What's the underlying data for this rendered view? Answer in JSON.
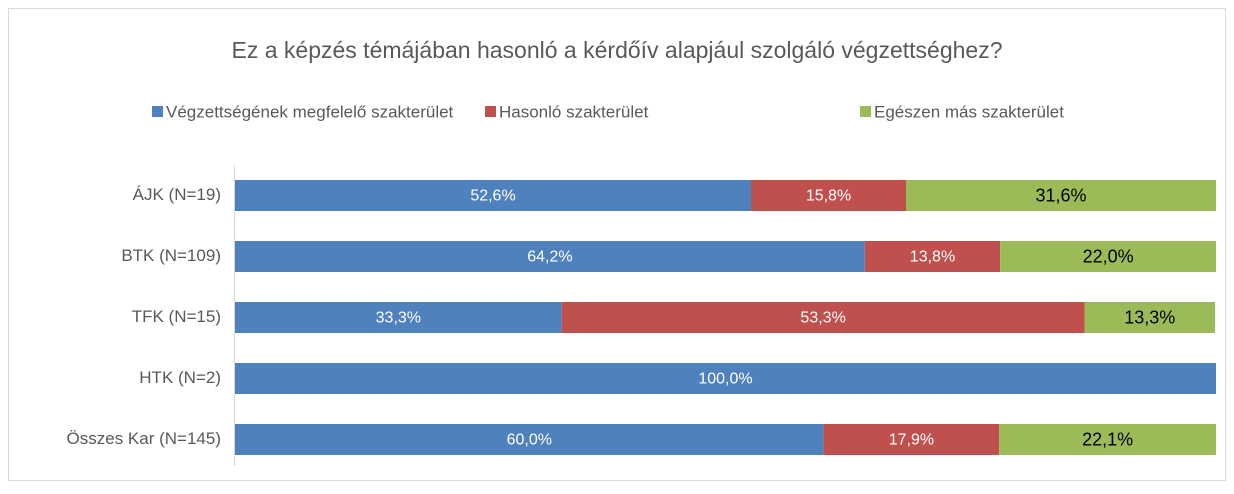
{
  "chart_data": {
    "type": "stacked-bar-horizontal",
    "title": "Ez a képzés témájában hasonló a kérdőív alapjául szolgáló végzettséghez?",
    "categories": [
      "ÁJK (N=19)",
      "BTK (N=109)",
      "TFK (N=15)",
      "HTK (N=2)",
      "Összes Kar (N=145)"
    ],
    "xlim": [
      0,
      100
    ],
    "series": [
      {
        "name": "Végzettségének megfelelő szakterület",
        "color": "#4f81bd",
        "label_color": "#ffffff",
        "values": [
          52.6,
          64.2,
          33.3,
          100,
          60.0
        ],
        "value_labels": [
          "52,6%",
          "64,2%",
          "33,3%",
          "100,0%",
          "60,0%"
        ]
      },
      {
        "name": "Hasonló szakterület",
        "color": "#c0504d",
        "label_color": "#ffffff",
        "values": [
          15.8,
          13.8,
          53.3,
          0,
          17.9
        ],
        "value_labels": [
          "15,8%",
          "13,8%",
          "53,3%",
          null,
          "17,9%"
        ]
      },
      {
        "name": "Egészen más szakterület",
        "color": "#9bbb59",
        "label_color": "#000000",
        "values": [
          31.6,
          22.0,
          13.3,
          0,
          22.1
        ],
        "value_labels": [
          "31,6%",
          "22,0%",
          "13,3%",
          null,
          "22,1%"
        ]
      }
    ]
  }
}
